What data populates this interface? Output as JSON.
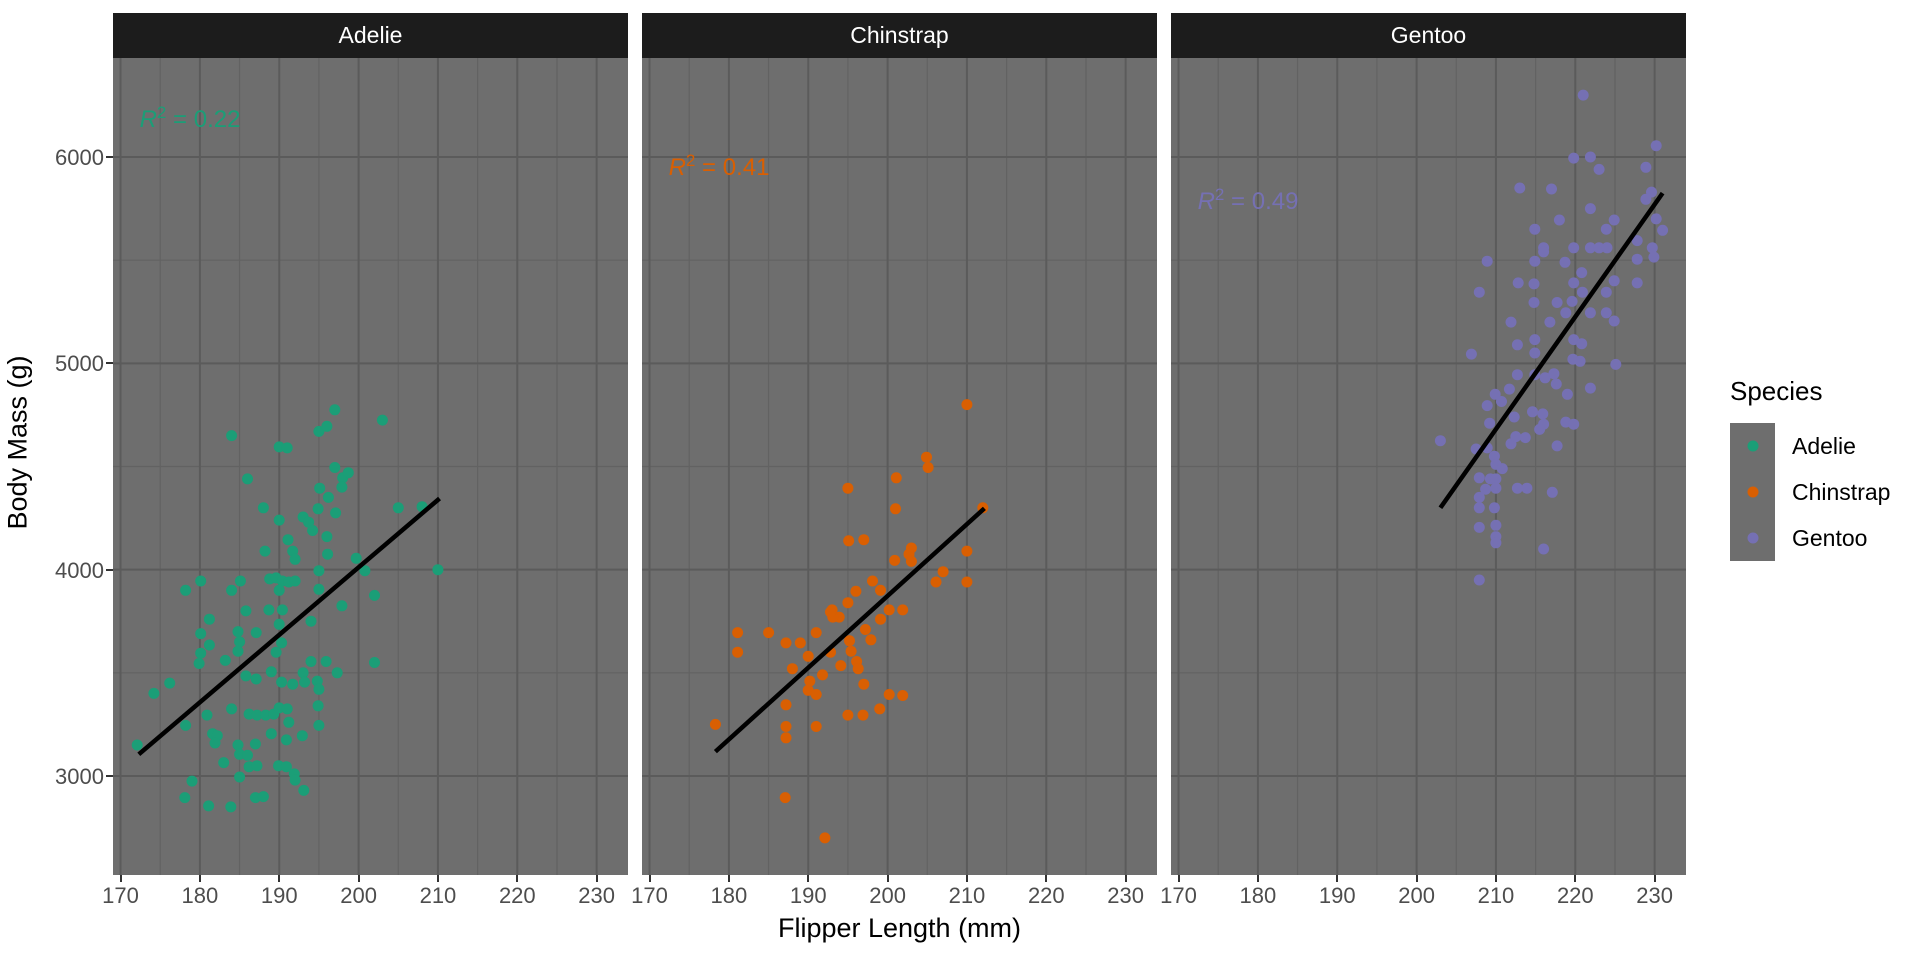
{
  "colors": {
    "background": "#ffffff",
    "panel_bg": "#6e6e6e",
    "grid_major": "#5b5b5b",
    "grid_minor": "#626262",
    "strip_bg": "#1c1c1c",
    "strip_text": "#ffffff",
    "axis_text": "#4d4d4d",
    "axis_title": "#000000",
    "regression_line": "#000000",
    "adelie": "#1b9e77",
    "chinstrap": "#d95f02",
    "gentoo": "#7570b3"
  },
  "chart_data": {
    "type": "scatter",
    "title": "",
    "xlabel": "Flipper Length (mm)",
    "ylabel": "Body Mass (g)",
    "x_domain": [
      169.05,
      233.95
    ],
    "y_domain": [
      2520,
      6480
    ],
    "x_ticks": [
      170,
      180,
      190,
      200,
      210,
      220,
      230
    ],
    "x_minor_ticks": [
      175,
      185,
      195,
      205,
      215,
      225
    ],
    "y_ticks": [
      3000,
      4000,
      5000,
      6000
    ],
    "y_minor_ticks": [
      3500,
      4500,
      5500
    ],
    "grid": true,
    "faceted_by": "Species",
    "annotation_parts": {
      "var": "R",
      "exp": "2",
      "eq": " = "
    },
    "legend": {
      "title": "Species",
      "position": "right",
      "entries": [
        {
          "label": "Adelie",
          "color": "#1b9e77"
        },
        {
          "label": "Chinstrap",
          "color": "#d95f02"
        },
        {
          "label": "Gentoo",
          "color": "#7570b3"
        }
      ]
    },
    "facets": [
      {
        "label": "Adelie",
        "color": "#1b9e77",
        "r_squared": "0.22",
        "annotation": {
          "x": 172.4,
          "y": 6200
        },
        "regression_line": {
          "x1": 172.3,
          "y1": 3105,
          "x2": 210.2,
          "y2": 4345
        },
        "points": [
          [
            172.1,
            3150
          ],
          [
            174.2,
            3400
          ],
          [
            176.2,
            3450
          ],
          [
            178.2,
            3900
          ],
          [
            180.1,
            3945
          ],
          [
            184,
            3900
          ],
          [
            185.1,
            3945
          ],
          [
            180.1,
            3690
          ],
          [
            180.1,
            3595
          ],
          [
            181.2,
            3635
          ],
          [
            179.9,
            3545
          ],
          [
            183.2,
            3560
          ],
          [
            184.8,
            3700
          ],
          [
            185,
            3650
          ],
          [
            184.8,
            3605
          ],
          [
            187.1,
            3695
          ],
          [
            189.6,
            3600
          ],
          [
            190.3,
            3645
          ],
          [
            194,
            3555
          ],
          [
            195.9,
            3555
          ],
          [
            197.3,
            3500
          ],
          [
            202,
            3550
          ],
          [
            185.8,
            3485
          ],
          [
            187.1,
            3470
          ],
          [
            189,
            3505
          ],
          [
            190.3,
            3455
          ],
          [
            191.7,
            3445
          ],
          [
            193,
            3500
          ],
          [
            193.2,
            3455
          ],
          [
            194.8,
            3460
          ],
          [
            195,
            3420
          ],
          [
            184,
            3325
          ],
          [
            186.2,
            3300
          ],
          [
            187.2,
            3295
          ],
          [
            188.3,
            3295
          ],
          [
            189.3,
            3300
          ],
          [
            190,
            3330
          ],
          [
            191,
            3325
          ],
          [
            191.2,
            3260
          ],
          [
            194.9,
            3340
          ],
          [
            195,
            3245
          ],
          [
            180.9,
            3295
          ],
          [
            178.2,
            3245
          ],
          [
            181.6,
            3205
          ],
          [
            182.2,
            3195
          ],
          [
            181.9,
            3160
          ],
          [
            183,
            3065
          ],
          [
            184.8,
            3150
          ],
          [
            185,
            3105
          ],
          [
            186,
            3100
          ],
          [
            186.2,
            3045
          ],
          [
            187,
            3155
          ],
          [
            187.2,
            3050
          ],
          [
            189,
            3205
          ],
          [
            189.9,
            3050
          ],
          [
            190.9,
            3045
          ],
          [
            190.9,
            3175
          ],
          [
            191.9,
            3010
          ],
          [
            192,
            2980
          ],
          [
            192.9,
            3195
          ],
          [
            193.1,
            2930
          ],
          [
            179,
            2975
          ],
          [
            178.1,
            2895
          ],
          [
            181.1,
            2855
          ],
          [
            183.9,
            2850
          ],
          [
            187,
            2895
          ],
          [
            188,
            2900
          ],
          [
            185,
            2995
          ],
          [
            184,
            4650
          ],
          [
            197,
            4775
          ],
          [
            203,
            4725
          ],
          [
            195,
            4670
          ],
          [
            196,
            4695
          ],
          [
            190,
            4595
          ],
          [
            191,
            4590
          ],
          [
            186,
            4440
          ],
          [
            197,
            4495
          ],
          [
            198,
            4445
          ],
          [
            198.7,
            4470
          ],
          [
            197.9,
            4400
          ],
          [
            195.1,
            4395
          ],
          [
            196.2,
            4350
          ],
          [
            188,
            4300
          ],
          [
            194.9,
            4295
          ],
          [
            197.1,
            4275
          ],
          [
            205,
            4300
          ],
          [
            208,
            4305
          ],
          [
            190,
            4240
          ],
          [
            193,
            4255
          ],
          [
            193.7,
            4230
          ],
          [
            194.2,
            4190
          ],
          [
            191.1,
            4145
          ],
          [
            196,
            4160
          ],
          [
            188.2,
            4090
          ],
          [
            191.7,
            4090
          ],
          [
            192,
            4050
          ],
          [
            196.1,
            4075
          ],
          [
            195,
            3995
          ],
          [
            199.7,
            4055
          ],
          [
            188.8,
            3955
          ],
          [
            189.6,
            3960
          ],
          [
            190.4,
            3945
          ],
          [
            191.2,
            3940
          ],
          [
            190,
            3900
          ],
          [
            192,
            3945
          ],
          [
            195,
            3905
          ],
          [
            200.8,
            3995
          ],
          [
            202,
            3875
          ],
          [
            197.9,
            3825
          ],
          [
            181.2,
            3760
          ],
          [
            185.8,
            3800
          ],
          [
            188.7,
            3805
          ],
          [
            190.4,
            3805
          ],
          [
            194,
            3750
          ],
          [
            190,
            3735
          ],
          [
            210,
            4000
          ]
        ]
      },
      {
        "label": "Chinstrap",
        "color": "#d95f02",
        "r_squared": "0.41",
        "annotation": {
          "x": 172.4,
          "y": 5965
        },
        "regression_line": {
          "x1": 178.3,
          "y1": 3118,
          "x2": 212.2,
          "y2": 4297
        },
        "points": [
          [
            210,
            4800
          ],
          [
            204.9,
            4545
          ],
          [
            205.1,
            4495
          ],
          [
            201.1,
            4445
          ],
          [
            195,
            4395
          ],
          [
            201,
            4295
          ],
          [
            212,
            4300
          ],
          [
            195.1,
            4140
          ],
          [
            197,
            4145
          ],
          [
            203,
            4105
          ],
          [
            202.7,
            4075
          ],
          [
            203,
            4040
          ],
          [
            200.9,
            4045
          ],
          [
            207,
            3990
          ],
          [
            206.1,
            3940
          ],
          [
            210,
            4090
          ],
          [
            210,
            3940
          ],
          [
            198.1,
            3945
          ],
          [
            199.1,
            3900
          ],
          [
            196,
            3895
          ],
          [
            195,
            3840
          ],
          [
            193,
            3805
          ],
          [
            193.9,
            3770
          ],
          [
            193.1,
            3770
          ],
          [
            200.2,
            3805
          ],
          [
            201.9,
            3805
          ],
          [
            199.1,
            3760
          ],
          [
            178.3,
            3250
          ],
          [
            181.1,
            3695
          ],
          [
            181.1,
            3600
          ],
          [
            185,
            3695
          ],
          [
            187.2,
            3645
          ],
          [
            189,
            3645
          ],
          [
            191,
            3695
          ],
          [
            192.8,
            3795
          ],
          [
            188,
            3520
          ],
          [
            190,
            3580
          ],
          [
            190.2,
            3460
          ],
          [
            190,
            3415
          ],
          [
            191,
            3395
          ],
          [
            191.8,
            3490
          ],
          [
            192.8,
            3600
          ],
          [
            194.1,
            3535
          ],
          [
            195.2,
            3655
          ],
          [
            195.4,
            3605
          ],
          [
            196.1,
            3555
          ],
          [
            196.3,
            3520
          ],
          [
            197.2,
            3710
          ],
          [
            197.9,
            3660
          ],
          [
            197,
            3445
          ],
          [
            200.2,
            3395
          ],
          [
            201.9,
            3390
          ],
          [
            199,
            3325
          ],
          [
            195,
            3295
          ],
          [
            196.9,
            3295
          ],
          [
            187.2,
            3345
          ],
          [
            187.2,
            3240
          ],
          [
            187.2,
            3185
          ],
          [
            191,
            3240
          ],
          [
            187.1,
            2895
          ],
          [
            192.1,
            2700
          ]
        ]
      },
      {
        "label": "Gentoo",
        "color": "#7570b3",
        "r_squared": "0.49",
        "annotation": {
          "x": 172.4,
          "y": 5800
        },
        "regression_line": {
          "x1": 203,
          "y1": 4300,
          "x2": 231,
          "y2": 5825
        },
        "points": [
          [
            221,
            6300
          ],
          [
            230.2,
            6055
          ],
          [
            219.8,
            5995
          ],
          [
            221.9,
            6000
          ],
          [
            223,
            5940
          ],
          [
            228.9,
            5950
          ],
          [
            213,
            5850
          ],
          [
            217,
            5845
          ],
          [
            229.6,
            5830
          ],
          [
            228.9,
            5795
          ],
          [
            221.9,
            5750
          ],
          [
            218,
            5695
          ],
          [
            214.9,
            5650
          ],
          [
            223.9,
            5650
          ],
          [
            224.9,
            5695
          ],
          [
            230.2,
            5700
          ],
          [
            231,
            5645
          ],
          [
            216,
            5560
          ],
          [
            219.8,
            5560
          ],
          [
            221.9,
            5560
          ],
          [
            223,
            5560
          ],
          [
            224,
            5560
          ],
          [
            227.8,
            5595
          ],
          [
            229.7,
            5560
          ],
          [
            229.9,
            5515
          ],
          [
            208.9,
            5495
          ],
          [
            214.9,
            5495
          ],
          [
            216,
            5540
          ],
          [
            218.7,
            5490
          ],
          [
            227.8,
            5505
          ],
          [
            207.9,
            5345
          ],
          [
            212.8,
            5390
          ],
          [
            214.8,
            5385
          ],
          [
            219.8,
            5390
          ],
          [
            220.8,
            5440
          ],
          [
            223.9,
            5345
          ],
          [
            224.9,
            5400
          ],
          [
            227.8,
            5390
          ],
          [
            214.8,
            5295
          ],
          [
            217.7,
            5295
          ],
          [
            219.6,
            5300
          ],
          [
            220.9,
            5345
          ],
          [
            218.8,
            5245
          ],
          [
            221.9,
            5245
          ],
          [
            223.9,
            5245
          ],
          [
            211.9,
            5200
          ],
          [
            216.8,
            5200
          ],
          [
            224.9,
            5205
          ],
          [
            206.9,
            5045
          ],
          [
            212.7,
            5090
          ],
          [
            214.9,
            5115
          ],
          [
            214.9,
            5050
          ],
          [
            219.8,
            5115
          ],
          [
            220.8,
            5095
          ],
          [
            219.7,
            5020
          ],
          [
            220.6,
            5010
          ],
          [
            225.1,
            4995
          ],
          [
            212.7,
            4945
          ],
          [
            214.9,
            4945
          ],
          [
            216.2,
            4930
          ],
          [
            217.3,
            4950
          ],
          [
            217.6,
            4900
          ],
          [
            219,
            4850
          ],
          [
            221.9,
            4880
          ],
          [
            209.9,
            4850
          ],
          [
            210.7,
            4815
          ],
          [
            208.9,
            4795
          ],
          [
            211.7,
            4875
          ],
          [
            209.2,
            4710
          ],
          [
            212.3,
            4740
          ],
          [
            214.6,
            4765
          ],
          [
            215.9,
            4755
          ],
          [
            216,
            4705
          ],
          [
            215.5,
            4680
          ],
          [
            218.8,
            4715
          ],
          [
            219.8,
            4705
          ],
          [
            203,
            4625
          ],
          [
            207.5,
            4585
          ],
          [
            208.9,
            4590
          ],
          [
            211.9,
            4610
          ],
          [
            212.5,
            4645
          ],
          [
            213.7,
            4640
          ],
          [
            217.7,
            4600
          ],
          [
            209.8,
            4550
          ],
          [
            210,
            4510
          ],
          [
            210.8,
            4490
          ],
          [
            207.9,
            4445
          ],
          [
            209.3,
            4440
          ],
          [
            210,
            4440
          ],
          [
            208.7,
            4390
          ],
          [
            210,
            4395
          ],
          [
            212.7,
            4395
          ],
          [
            213.9,
            4395
          ],
          [
            217.1,
            4375
          ],
          [
            207.9,
            4350
          ],
          [
            207.9,
            4300
          ],
          [
            209.8,
            4300
          ],
          [
            210,
            4215
          ],
          [
            207.9,
            4205
          ],
          [
            210,
            4160
          ],
          [
            210,
            4130
          ],
          [
            216,
            4100
          ],
          [
            207.9,
            3950
          ]
        ]
      }
    ]
  }
}
